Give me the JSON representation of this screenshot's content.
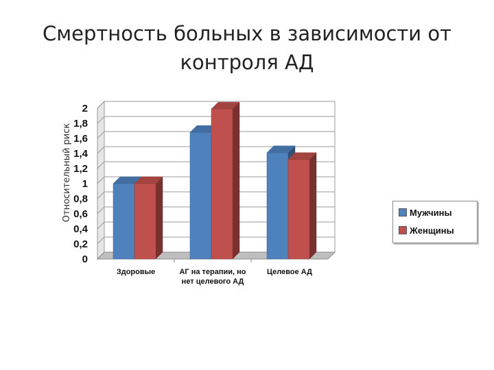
{
  "title_lines": [
    "Смертность больных в зависимости от",
    "контроля АД"
  ],
  "chart_data": {
    "type": "bar",
    "categories": [
      [
        "Здоровые"
      ],
      [
        "АГ на терапии, но",
        "нет целевого АД"
      ],
      [
        "Целевое АД"
      ]
    ],
    "series": [
      {
        "name": "Мужчины",
        "values": [
          1.0,
          1.68,
          1.41
        ],
        "color": "#4f81bd"
      },
      {
        "name": "Женщины",
        "values": [
          1.0,
          1.99,
          1.32
        ],
        "color": "#c0504d"
      }
    ],
    "ylabel": "Относительный риск",
    "ylim": [
      0,
      2
    ],
    "y_ticks": [
      "0",
      "0,2",
      "0,4",
      "0,6",
      "0,8",
      "1",
      "1,2",
      "1,4",
      "1,6",
      "1,8",
      "2"
    ],
    "grid": true,
    "legend_position": "right",
    "style": "3d-clustered-bar"
  }
}
